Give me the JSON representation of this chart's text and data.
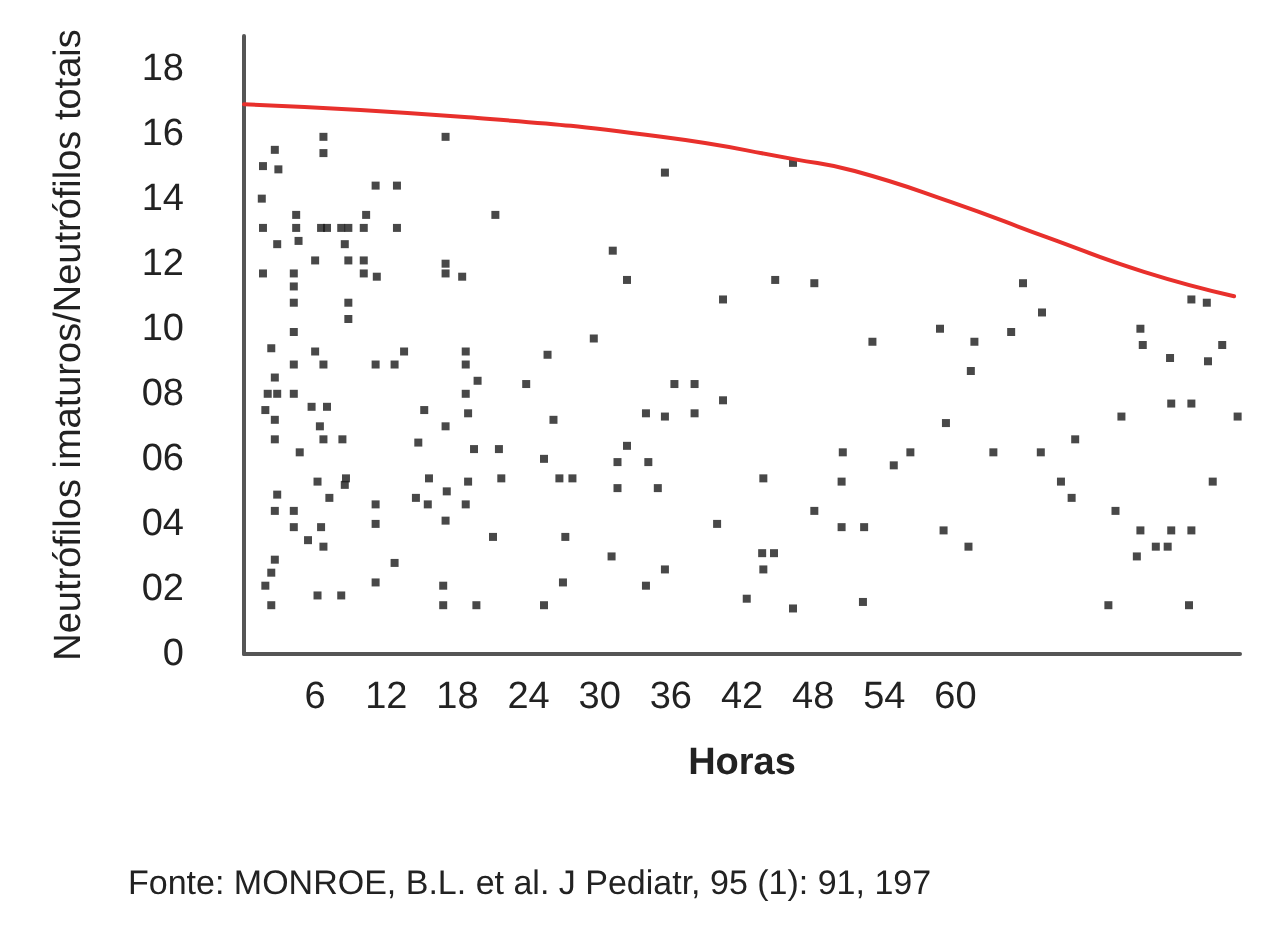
{
  "chart_data": {
    "type": "scatter",
    "xlabel": "Horas",
    "ylabel": "Neutrófilos imaturos/Neutrófilos totais",
    "annotations": [
      "Fonte: MONROE, B.L. et al. J Pediatr, 95 (1): 91, 197"
    ],
    "xlim": [
      0,
      84
    ],
    "xticks": [
      6,
      12,
      18,
      24,
      30,
      36,
      42,
      48,
      54,
      60
    ],
    "ylim": [
      0,
      19
    ],
    "yticks": [
      0,
      {
        "value": 2,
        "label": "02"
      },
      {
        "value": 4,
        "label": "04"
      },
      {
        "value": 6,
        "label": "06"
      },
      {
        "value": 8,
        "label": "08"
      },
      10,
      12,
      14,
      16,
      18
    ],
    "grid": false,
    "marker": "square",
    "series": [
      {
        "color": "#1a1a1a",
        "x": [
          2.6,
          1.6,
          2.9,
          1.5,
          1.6,
          2.8,
          1.6,
          4.4,
          4.4,
          4.6,
          4.2,
          4.2,
          4.2,
          6.0,
          6.5,
          6.7,
          6.7,
          7.0,
          8.2,
          8.8,
          8.5,
          8.8,
          8.8,
          8.8,
          10.1,
          10.1,
          10.1,
          10.3,
          11.2,
          11.1,
          12.9,
          12.9,
          17.0,
          17.0,
          17.0,
          18.4,
          2.3,
          2.6,
          2.0,
          2.8,
          1.8,
          2.6,
          2.6,
          4.2,
          4.2,
          4.2,
          4.7,
          6.0,
          6.7,
          5.7,
          7.0,
          6.4,
          6.7,
          8.3,
          11.1,
          12.7,
          13.5,
          15.2,
          14.7,
          17.0,
          18.7,
          18.7,
          18.7,
          18.9,
          19.7,
          19.4,
          2.8,
          2.6,
          4.2,
          4.2,
          5.4,
          6.5,
          6.7,
          7.2,
          6.2,
          8.5,
          8.6,
          11.1,
          11.1,
          14.5,
          15.5,
          15.6,
          17.1,
          17.0,
          18.7,
          18.9,
          1.8,
          2.3,
          2.6,
          2.3,
          6.2,
          8.2,
          11.1,
          12.7,
          16.8,
          16.8,
          19.6,
          21.2,
          35.5,
          46.3,
          31.1,
          32.3,
          44.8,
          48.1,
          40.4,
          29.5,
          25.6,
          23.8,
          36.3,
          38.0,
          40.4,
          33.9,
          35.5,
          38.0,
          26.1,
          21.5,
          32.3,
          25.3,
          31.5,
          34.1,
          26.6,
          27.7,
          21.7,
          31.5,
          34.9,
          43.8,
          50.4,
          50.5,
          48.1,
          50.4,
          52.3,
          39.9,
          21.0,
          27.1,
          31.0,
          43.7,
          44.7,
          43.8,
          35.5,
          26.9,
          33.9,
          25.3,
          42.4,
          46.3,
          52.2,
          53.0,
          65.7,
          58.7,
          64.7,
          67.3,
          61.6,
          61.3,
          75.6,
          75.8,
          78.1,
          79.9,
          81.2,
          81.3,
          82.5,
          83.8,
          74.0,
          78.2,
          79.9,
          59.2,
          56.2,
          54.8,
          63.2,
          67.2,
          70.1,
          68.9,
          69.8,
          81.7,
          73.5,
          75.6,
          75.3,
          76.9,
          77.9,
          78.2,
          79.9,
          59.0,
          61.1,
          72.9,
          79.7
        ],
        "values": [
          15.5,
          15.0,
          14.9,
          14.0,
          13.1,
          12.6,
          11.7,
          13.5,
          13.1,
          12.7,
          11.7,
          11.3,
          10.8,
          12.1,
          13.1,
          15.9,
          15.4,
          13.1,
          13.1,
          13.1,
          12.6,
          12.1,
          10.8,
          10.3,
          12.1,
          11.7,
          13.1,
          13.5,
          11.6,
          14.4,
          14.4,
          13.1,
          15.9,
          12.0,
          11.7,
          11.6,
          9.4,
          8.5,
          8.0,
          8.0,
          7.5,
          7.2,
          6.6,
          9.9,
          8.9,
          8.0,
          6.2,
          9.3,
          8.9,
          7.6,
          7.6,
          7.0,
          6.6,
          6.6,
          8.9,
          8.9,
          9.3,
          7.5,
          6.5,
          7.0,
          8.9,
          9.3,
          8.0,
          7.4,
          8.4,
          6.3,
          4.9,
          4.4,
          4.4,
          3.9,
          3.5,
          3.9,
          3.3,
          4.8,
          5.3,
          5.2,
          5.4,
          4.6,
          4.0,
          4.8,
          4.6,
          5.4,
          5.0,
          4.1,
          4.6,
          5.3,
          2.1,
          2.5,
          2.9,
          1.5,
          1.8,
          1.8,
          2.2,
          2.8,
          2.1,
          1.5,
          1.5,
          13.5,
          14.8,
          15.1,
          12.4,
          11.5,
          11.5,
          11.4,
          10.9,
          9.7,
          9.2,
          8.3,
          8.3,
          8.3,
          7.8,
          7.4,
          7.3,
          7.4,
          7.2,
          6.3,
          6.4,
          6.0,
          5.9,
          5.9,
          5.4,
          5.4,
          5.4,
          5.1,
          5.1,
          5.4,
          5.3,
          6.2,
          4.4,
          3.9,
          3.9,
          4.0,
          3.6,
          3.6,
          3.0,
          3.1,
          3.1,
          2.6,
          2.6,
          2.2,
          2.1,
          1.5,
          1.7,
          1.4,
          1.6,
          9.6,
          11.4,
          10.0,
          9.9,
          10.5,
          9.6,
          8.7,
          10.0,
          9.5,
          9.1,
          10.9,
          10.8,
          9.0,
          9.5,
          7.3,
          7.3,
          7.7,
          7.7,
          7.1,
          6.2,
          5.8,
          6.2,
          6.2,
          6.6,
          5.3,
          4.8,
          5.3,
          4.4,
          3.8,
          3.0,
          3.3,
          3.3,
          3.8,
          3.8,
          3.8,
          3.3,
          1.5,
          1.5
        ]
      },
      {
        "type": "line",
        "color": "#e8302c",
        "marker": "none",
        "line_style": "solid",
        "x": [
          0,
          18.9,
          35.2,
          46.6,
          51.5,
          59.6,
          67.8,
          75.9,
          83.5
        ],
        "values": [
          16.9,
          16.5,
          15.9,
          15.2,
          14.85,
          13.9,
          12.8,
          11.75,
          11.0
        ]
      }
    ]
  }
}
